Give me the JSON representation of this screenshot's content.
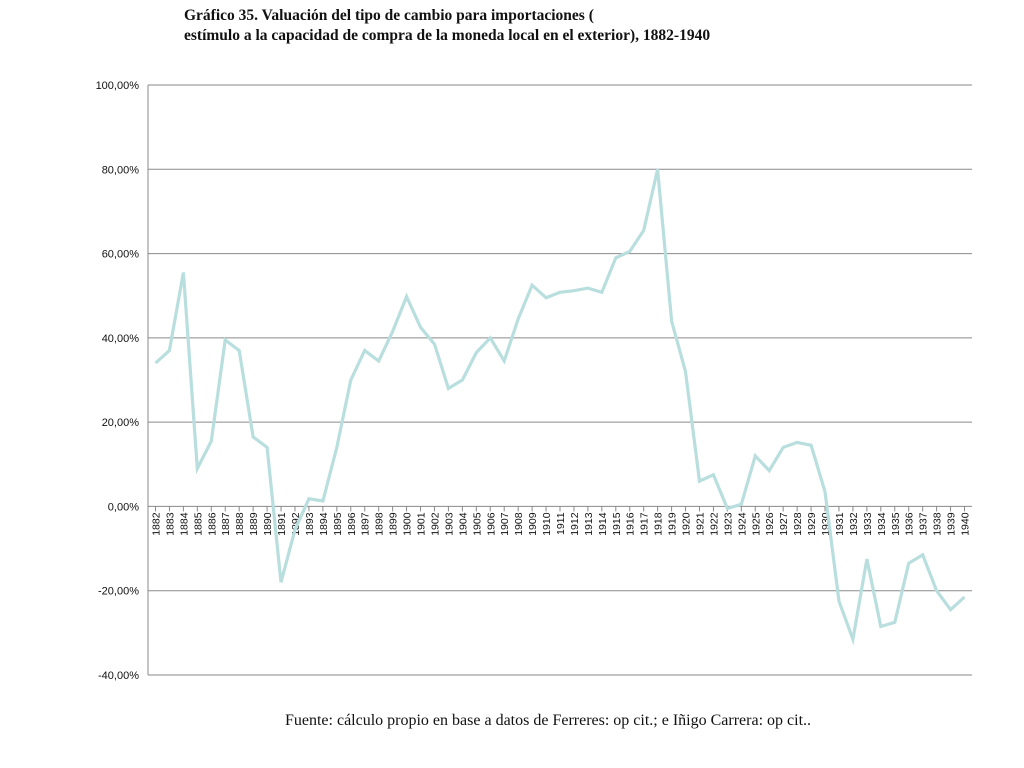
{
  "title": {
    "line1": "Gráfico 35. Valuación del tipo de cambio para importaciones (",
    "line2": "estímulo a la capacidad de compra de la moneda local en el exterior), 1882-1940"
  },
  "source": "Fuente: cálculo propio en base a datos de Ferreres: op cit.; e Iñigo Carrera: op cit..",
  "chart_data": {
    "type": "line",
    "title": "Gráfico 35. Valuación del tipo de cambio para importaciones ( estímulo a la capacidad de compra de la moneda local en el exterior), 1882-1940",
    "xlabel": "",
    "ylabel": "",
    "ylim": [
      -40,
      100
    ],
    "yticks": [
      100,
      80,
      60,
      40,
      20,
      0,
      -20,
      -40
    ],
    "ytick_labels": [
      "100,00%",
      "80,00%",
      "60,00%",
      "40,00%",
      "20,00%",
      "0,00%",
      "-20,00%",
      "-40,00%"
    ],
    "grid": "horizontal",
    "legend": "none",
    "line_color": "#b9dede",
    "categories": [
      "1882",
      "1883",
      "1884",
      "1885",
      "1886",
      "1887",
      "1888",
      "1889",
      "1890",
      "1891",
      "1892",
      "1893",
      "1894",
      "1895",
      "1896",
      "1897",
      "1898",
      "1899",
      "1900",
      "1901",
      "1902",
      "1903",
      "1904",
      "1905",
      "1906",
      "1907",
      "1908",
      "1909",
      "1910",
      "1911",
      "1912",
      "1913",
      "1914",
      "1915",
      "1916",
      "1917",
      "1918",
      "1919",
      "1920",
      "1921",
      "1922",
      "1923",
      "1924",
      "1925",
      "1926",
      "1927",
      "1928",
      "1929",
      "1930",
      "1931",
      "1932",
      "1933",
      "1934",
      "1935",
      "1936",
      "1937",
      "1938",
      "1939",
      "1940"
    ],
    "values": [
      34,
      37,
      55.5,
      9,
      15.5,
      39.5,
      37,
      16.5,
      14,
      -18,
      -5.5,
      1.8,
      1.3,
      14,
      30,
      37,
      34.5,
      41.5,
      49.8,
      42.5,
      38.5,
      28,
      30,
      36.5,
      40,
      34.5,
      44.5,
      52.5,
      49.5,
      50.8,
      51.2,
      51.8,
      50.8,
      59,
      60.5,
      65.5,
      80,
      44,
      32,
      6,
      7.5,
      -0.5,
      0.5,
      12,
      8.5,
      14,
      15.2,
      14.5,
      3.5,
      -22.5,
      -31.5,
      -12.5,
      -28.5,
      -27.5,
      -13.5,
      -11.5,
      -20,
      -24.5,
      -21.5
    ]
  }
}
